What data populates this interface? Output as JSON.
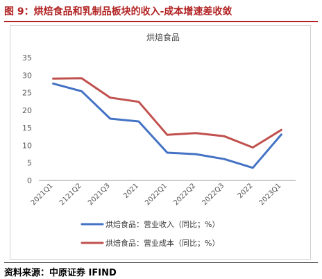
{
  "figure": {
    "title": "图 9：烘焙食品和乳制品板块的收入-成本增速差收敛",
    "source": "资料来源：中原证券 IFIND"
  },
  "chart_data": {
    "type": "line",
    "title": "烘焙食品",
    "categories": [
      "2021Q1",
      "2121Q2",
      "2021Q3",
      "2021",
      "2022Q1",
      "2022Q2",
      "2022Q3",
      "2022",
      "2023Q1"
    ],
    "series": [
      {
        "name": "烘焙食品：营业收入（同比；%）",
        "color": "#4472c4",
        "values": [
          27.6,
          25.4,
          17.6,
          16.8,
          7.9,
          7.5,
          6.1,
          3.6,
          13.1
        ]
      },
      {
        "name": "烘焙食品：营业成本（同比；%）",
        "color": "#c0504d",
        "values": [
          29.0,
          29.1,
          23.6,
          22.4,
          13.0,
          13.5,
          12.6,
          9.4,
          14.4
        ]
      }
    ],
    "yticks": [
      "0",
      "5",
      "10",
      "15",
      "20",
      "25",
      "30",
      "35"
    ],
    "ylim": [
      0,
      35
    ],
    "grid": false,
    "legend": "bottom"
  }
}
